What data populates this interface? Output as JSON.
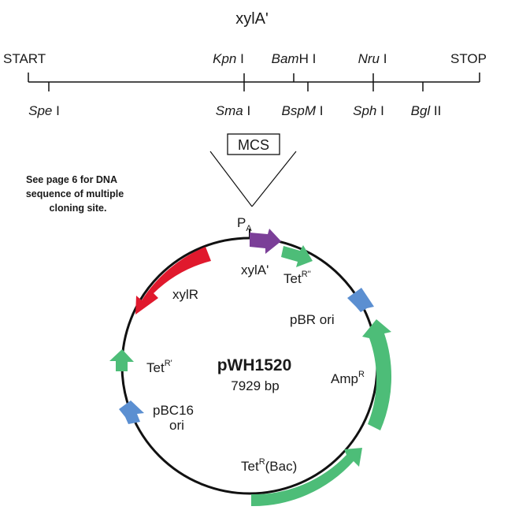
{
  "map": {
    "gene_label": "xylA'",
    "start_label": "START",
    "stop_label": "STOP",
    "sites_top": [
      {
        "italic": "Kpn",
        "rest": " I"
      },
      {
        "italic": "Bam",
        "rest": "H I"
      },
      {
        "italic": "Nru",
        "rest": " I"
      }
    ],
    "sites_bottom": [
      {
        "italic": "Spe",
        "rest": " I"
      },
      {
        "italic": "Sma",
        "rest": " I"
      },
      {
        "italic": "BspM",
        "rest": " I"
      },
      {
        "italic": "Sph",
        "rest": " I"
      },
      {
        "italic": "Bgl",
        "rest": " II"
      }
    ],
    "mcs_label": "MCS"
  },
  "note": {
    "lines": [
      "See page 6 for DNA",
      "sequence of multiple",
      "cloning site."
    ]
  },
  "plasmid": {
    "name": "pWH1520",
    "size": "7929 bp",
    "promoter": {
      "base": "P",
      "sub": "A"
    },
    "features": {
      "xylA": "xylA'",
      "tet_r2": {
        "base": "Tet",
        "sup": "R''"
      },
      "pbr_ori": "pBR ori",
      "amp": {
        "base": "Amp",
        "sup": "R"
      },
      "tet_bac": {
        "base": "Tet",
        "sup": "R",
        "rest": "(Bac)"
      },
      "pbc16_line1": "pBC16",
      "pbc16_line2": "ori",
      "tet_r1": {
        "base": "Tet",
        "sup": "R'"
      },
      "xylR": "xylR"
    },
    "colors": {
      "xylA": "#7b3f98",
      "tet": "#4dbd78",
      "amp": "#4dbd78",
      "ori": "#5b8fd1",
      "xylR": "#e0192d",
      "backbone": "#111111"
    }
  }
}
